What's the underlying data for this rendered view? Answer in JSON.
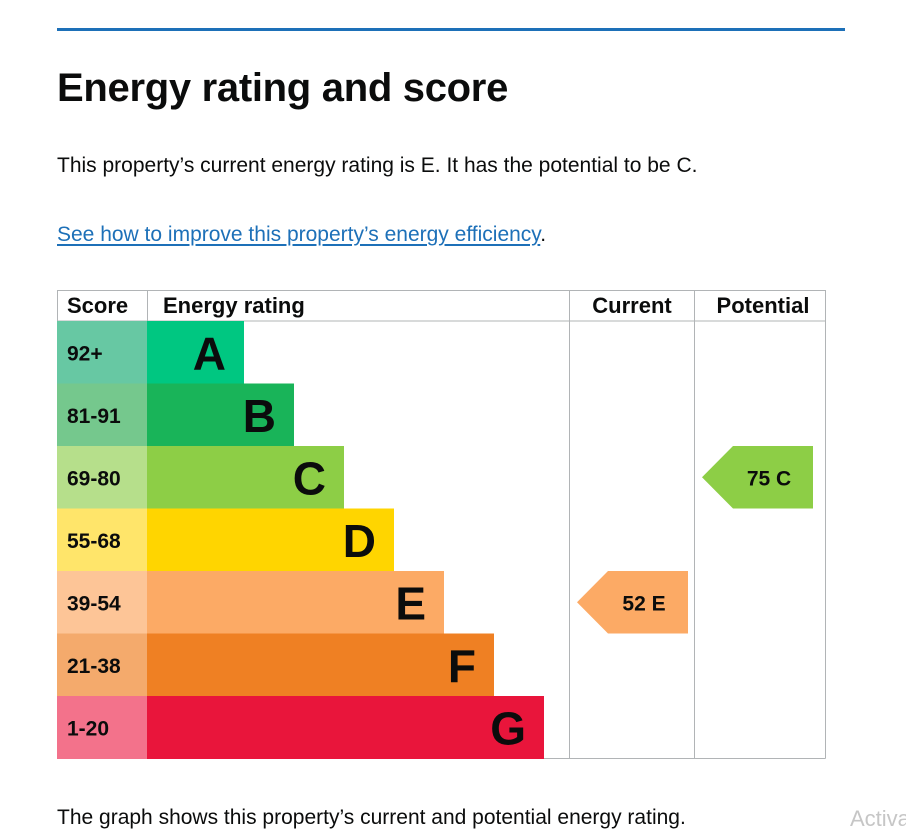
{
  "page": {
    "title": "Energy rating and score",
    "summary": "This property’s current energy rating is E. It has the potential to be C.",
    "improve_link": "See how to improve this property’s energy efficiency",
    "improve_suffix": ".",
    "footnote": "The graph shows this property’s current and potential energy rating.",
    "watermark": "Activa"
  },
  "chart_data": {
    "type": "bar",
    "headers": {
      "score": "Score",
      "rating": "Energy rating",
      "current": "Current",
      "potential": "Potential"
    },
    "bands": [
      {
        "score": "92+",
        "letter": "A",
        "color": "#00c781",
        "score_bg": "#67c8a3"
      },
      {
        "score": "81-91",
        "letter": "B",
        "color": "#19b459",
        "score_bg": "#75c88d"
      },
      {
        "score": "69-80",
        "letter": "C",
        "color": "#8dce46",
        "score_bg": "#b6df8b"
      },
      {
        "score": "55-68",
        "letter": "D",
        "color": "#ffd500",
        "score_bg": "#ffe56a"
      },
      {
        "score": "39-54",
        "letter": "E",
        "color": "#fcaa65",
        "score_bg": "#fdc597"
      },
      {
        "score": "21-38",
        "letter": "F",
        "color": "#ef8023",
        "score_bg": "#f4aa6c"
      },
      {
        "score": "1-20",
        "letter": "G",
        "color": "#e9153b",
        "score_bg": "#f3728b"
      }
    ],
    "current": {
      "score": 52,
      "letter": "E",
      "label": "52  E"
    },
    "potential": {
      "score": 75,
      "letter": "C",
      "label": "75  C"
    }
  }
}
